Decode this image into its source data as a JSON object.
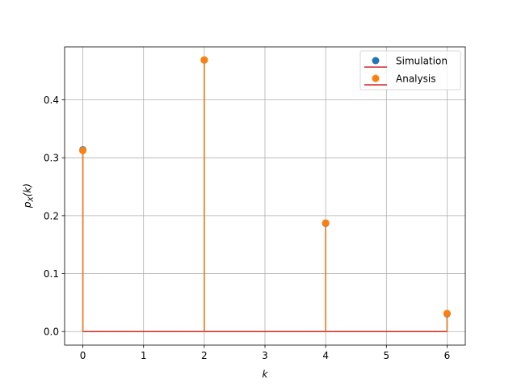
{
  "chart_data": {
    "type": "stem",
    "title": "",
    "xlabel": "k",
    "ylabel": "p_X(k)",
    "xlim": [
      -0.3,
      6.3
    ],
    "ylim": [
      -0.0234,
      0.4914
    ],
    "xticks": [
      0,
      1,
      2,
      3,
      4,
      5,
      6
    ],
    "yticks": [
      0.0,
      0.1,
      0.2,
      0.3,
      0.4
    ],
    "xtick_labels": [
      "0",
      "1",
      "2",
      "3",
      "4",
      "5",
      "6"
    ],
    "ytick_labels": [
      "0.0",
      "0.1",
      "0.2",
      "0.3",
      "0.4"
    ],
    "grid": true,
    "legend_position": "top-right",
    "x": [
      0,
      2,
      4,
      6
    ],
    "series": [
      {
        "name": "Simulation",
        "values": [
          0.3137,
          0.4688,
          0.1869,
          0.0306
        ],
        "marker_color": "#1f77b4",
        "stem_color": "#1f77b4",
        "baseline_color": "#d62728"
      },
      {
        "name": "Analysis",
        "values": [
          0.3125,
          0.4688,
          0.1875,
          0.0313
        ],
        "marker_color": "#ff7f0e",
        "stem_color": "#ff7f0e",
        "baseline_color": "#d62728"
      }
    ]
  }
}
